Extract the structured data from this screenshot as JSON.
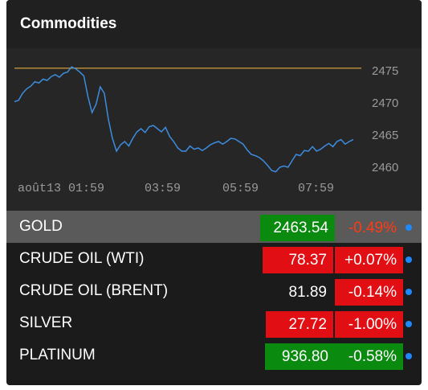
{
  "widget": {
    "title": "Commodities"
  },
  "colors": {
    "panel_bg": "#1b1b1b",
    "chart_bg": "#262626",
    "line": "#3c8de0",
    "ref_line": "#b38a3a",
    "up_bg": "#0b8a10",
    "down_bg": "#e10f14",
    "down_text": "#ff3a14",
    "dot": "#1e88ff",
    "selected_row": "#5a5a5a",
    "axis_text": "#9a9a9a"
  },
  "chart_data": {
    "type": "line",
    "ref_level": 2475.4,
    "ylim": [
      2457.5,
      2477.5
    ],
    "y_ticks": [
      "2475",
      "2470",
      "2465",
      "2460"
    ],
    "x_ticks": [
      "août13 01:59",
      "03:59",
      "05:59",
      "07:59"
    ],
    "series": [
      {
        "values": [
          2470.2,
          2470.4,
          2471.5,
          2472.2,
          2472.6,
          2473.3,
          2473.1,
          2473.7,
          2473.5,
          2474.1,
          2474.4,
          2474.0,
          2474.6,
          2474.8,
          2475.6,
          2475.3,
          2474.8,
          2474.2,
          2471.0,
          2468.5,
          2469.8,
          2472.5,
          2471.5,
          2467.5,
          2464.5,
          2462.5,
          2463.5,
          2464.0,
          2463.3,
          2464.5,
          2465.5,
          2466.0,
          2465.4,
          2466.3,
          2466.5,
          2466.0,
          2465.5,
          2466.2,
          2464.8,
          2464.0,
          2463.0,
          2462.5,
          2462.5,
          2463.3,
          2462.8,
          2463.0,
          2462.6,
          2463.0,
          2463.5,
          2463.8,
          2464.0,
          2463.6,
          2464.0,
          2464.5,
          2464.4,
          2464.0,
          2463.6,
          2462.7,
          2462.0,
          2461.8,
          2461.5,
          2461.0,
          2460.3,
          2459.5,
          2459.3,
          2460.0,
          2460.2,
          2460.0,
          2461.0,
          2462.0,
          2461.8,
          2462.6,
          2462.5,
          2463.2,
          2462.5,
          2462.8,
          2463.3,
          2463.7,
          2463.2,
          2464.0,
          2464.3,
          2463.6,
          2464.0,
          2464.3
        ]
      }
    ]
  },
  "rows": [
    {
      "name": "GOLD",
      "price": "2463.54",
      "change": "-0.49%",
      "price_bg": "#0b8a10",
      "change_bg": "",
      "change_color": "#ff3a14"
    },
    {
      "name": "CRUDE OIL (WTI)",
      "price": "78.37",
      "change": "+0.07%",
      "price_bg": "#e10f14",
      "change_bg": "#e10f14",
      "change_color": "#ffffff"
    },
    {
      "name": "CRUDE OIL (BRENT)",
      "price": "81.89",
      "change": "-0.14%",
      "price_bg": "",
      "change_bg": "#e10f14",
      "change_color": "#ffffff"
    },
    {
      "name": "SILVER",
      "price": "27.72",
      "change": "-1.00%",
      "price_bg": "#e10f14",
      "change_bg": "#e10f14",
      "change_color": "#ffffff"
    },
    {
      "name": "PLATINUM",
      "price": "936.80",
      "change": "-0.58%",
      "price_bg": "#0b8a10",
      "change_bg": "#0b8a10",
      "change_color": "#ffffff"
    }
  ]
}
